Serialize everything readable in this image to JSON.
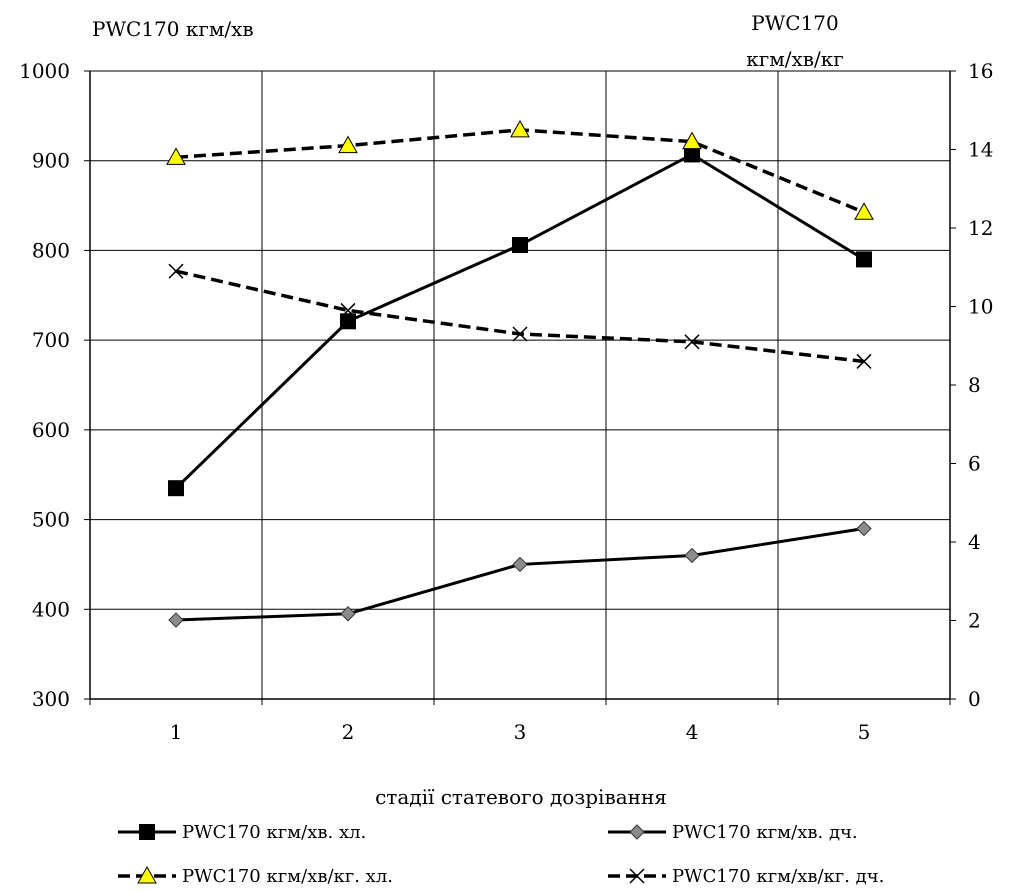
{
  "chart_data": {
    "type": "line",
    "x": [
      1,
      2,
      3,
      4,
      5
    ],
    "xlabel": "стадії статевого дозрівання",
    "y_left": {
      "label": "PWC170 кгм/хв",
      "range": [
        300,
        1000
      ],
      "ticks": [
        300,
        400,
        500,
        600,
        700,
        800,
        900,
        1000
      ]
    },
    "y_right": {
      "label_line1": "PWC170",
      "label_line2": "кгм/хв/кг",
      "range": [
        0,
        16
      ],
      "ticks": [
        0,
        2,
        4,
        6,
        8,
        10,
        12,
        14,
        16
      ]
    },
    "grid": true,
    "legend_position": "bottom",
    "series": [
      {
        "name": "PWC170 кгм/хв. хл.",
        "axis": "left",
        "values": [
          535,
          721,
          806,
          907,
          790
        ],
        "marker": "square",
        "line": "solid",
        "color": "#000000"
      },
      {
        "name": "PWC170 кгм/хв. дч.",
        "axis": "left",
        "values": [
          388,
          395,
          450,
          460,
          490
        ],
        "marker": "diamond",
        "line": "solid",
        "color": "#888888"
      },
      {
        "name": "PWC170 кгм/хв/кг. хл.",
        "axis": "right",
        "values": [
          13.8,
          14.1,
          14.5,
          14.2,
          12.4
        ],
        "marker": "triangle",
        "line": "dashed",
        "color": "#ffff00"
      },
      {
        "name": "PWC170 кгм/хв/кг. дч.",
        "axis": "right",
        "values": [
          10.9,
          9.9,
          9.3,
          9.1,
          8.6
        ],
        "marker": "x",
        "line": "dashed",
        "color": "#000000"
      }
    ]
  }
}
